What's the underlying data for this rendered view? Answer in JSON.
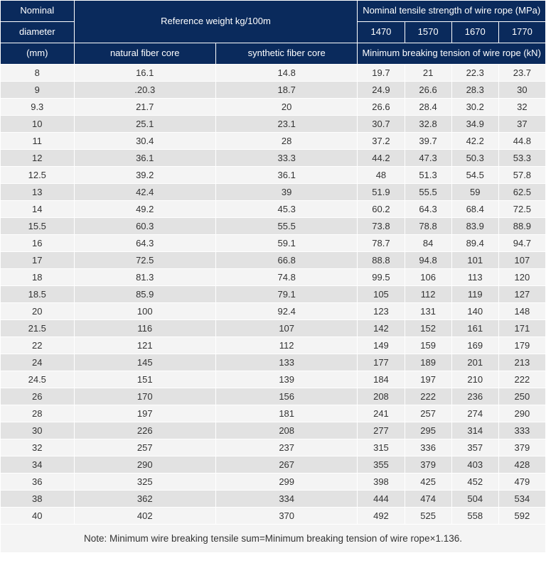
{
  "header": {
    "nominal_diameter_top": "Nominal",
    "nominal_diameter_mid": "diameter",
    "nominal_diameter_unit": "(mm)",
    "reference_weight": "Reference weight kg/100m",
    "natural_fiber": "natural fiber core",
    "synthetic_fiber": "synthetic fiber core",
    "tensile_strength_top": "Nominal tensile strength of wire rope (MPa)",
    "strength_values": [
      "1470",
      "1570",
      "1670",
      "1770"
    ],
    "min_breaking": "Minimum breaking tension of wire rope (kN)"
  },
  "rows": [
    [
      "8",
      "16.1",
      "14.8",
      "19.7",
      "21",
      "22.3",
      "23.7"
    ],
    [
      "9",
      ".20.3",
      "18.7",
      "24.9",
      "26.6",
      "28.3",
      "30"
    ],
    [
      "9.3",
      "21.7",
      "20",
      "26.6",
      "28.4",
      "30.2",
      "32"
    ],
    [
      "10",
      "25.1",
      "23.1",
      "30.7",
      "32.8",
      "34.9",
      "37"
    ],
    [
      "11",
      "30.4",
      "28",
      "37.2",
      "39.7",
      "42.2",
      "44.8"
    ],
    [
      "12",
      "36.1",
      "33.3",
      "44.2",
      "47.3",
      "50.3",
      "53.3"
    ],
    [
      "12.5",
      "39.2",
      "36.1",
      "48",
      "51.3",
      "54.5",
      "57.8"
    ],
    [
      "13",
      "42.4",
      "39",
      "51.9",
      "55.5",
      "59",
      "62.5"
    ],
    [
      "14",
      "49.2",
      "45.3",
      "60.2",
      "64.3",
      "68.4",
      "72.5"
    ],
    [
      "15.5",
      "60.3",
      "55.5",
      "73.8",
      "78.8",
      "83.9",
      "88.9"
    ],
    [
      "16",
      "64.3",
      "59.1",
      "78.7",
      "84",
      "89.4",
      "94.7"
    ],
    [
      "17",
      "72.5",
      "66.8",
      "88.8",
      "94.8",
      "101",
      "107"
    ],
    [
      "18",
      "81.3",
      "74.8",
      "99.5",
      "106",
      "113",
      "120"
    ],
    [
      "18.5",
      "85.9",
      "79.1",
      "105",
      "112",
      "119",
      "127"
    ],
    [
      "20",
      "100",
      "92.4",
      "123",
      "131",
      "140",
      "148"
    ],
    [
      "21.5",
      "116",
      "107",
      "142",
      "152",
      "161",
      "171"
    ],
    [
      "22",
      "121",
      "112",
      "149",
      "159",
      "169",
      "179"
    ],
    [
      "24",
      "145",
      "133",
      "177",
      "189",
      "201",
      "213"
    ],
    [
      "24.5",
      "151",
      "139",
      "184",
      "197",
      "210",
      "222"
    ],
    [
      "26",
      "170",
      "156",
      "208",
      "222",
      "236",
      "250"
    ],
    [
      "28",
      "197",
      "181",
      "241",
      "257",
      "274",
      "290"
    ],
    [
      "30",
      "226",
      "208",
      "277",
      "295",
      "314",
      "333"
    ],
    [
      "32",
      "257",
      "237",
      "315",
      "336",
      "357",
      "379"
    ],
    [
      "34",
      "290",
      "267",
      "355",
      "379",
      "403",
      "428"
    ],
    [
      "36",
      "325",
      "299",
      "398",
      "425",
      "452",
      "479"
    ],
    [
      "38",
      "362",
      "334",
      "444",
      "474",
      "504",
      "534"
    ],
    [
      "40",
      "402",
      "370",
      "492",
      "525",
      "558",
      "592"
    ]
  ],
  "note": "Note: Minimum wire breaking tensile sum=Minimum breaking tension of wire rope×1.136."
}
